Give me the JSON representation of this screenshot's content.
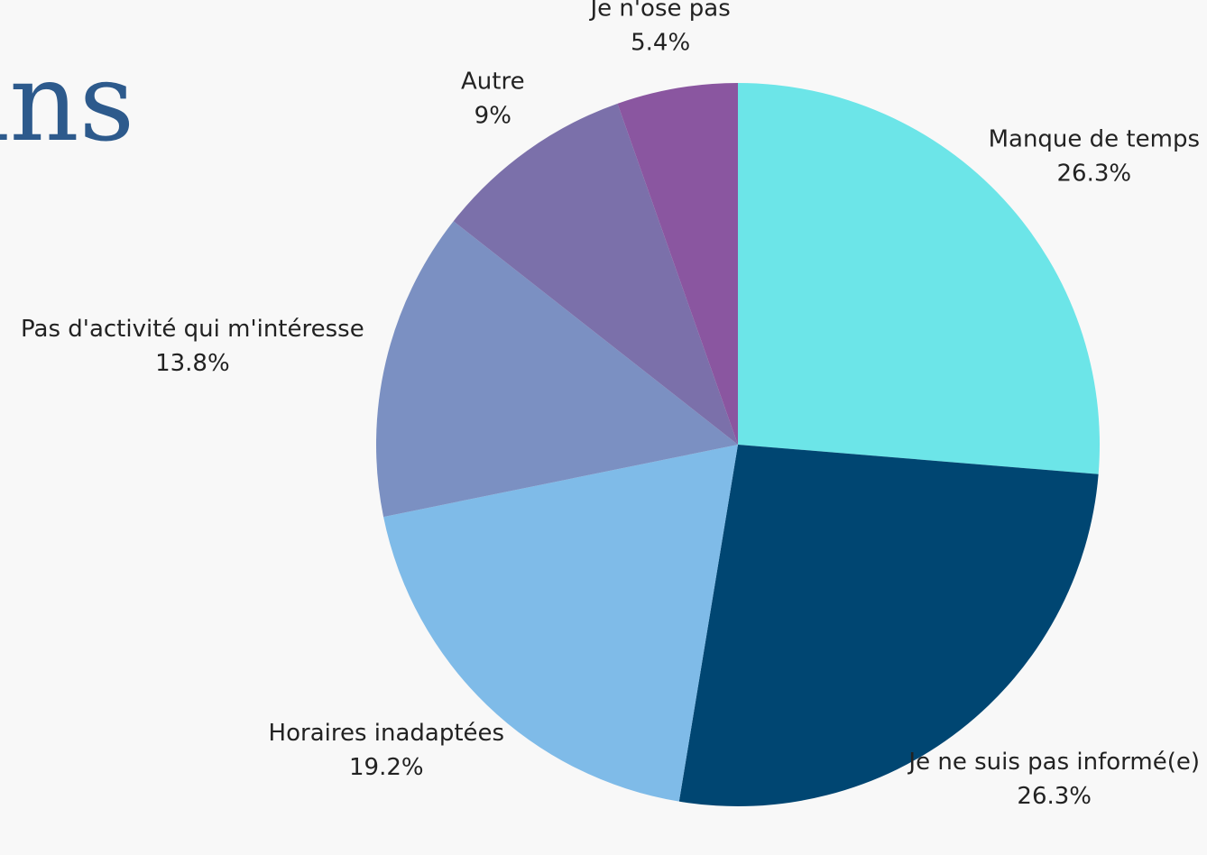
{
  "chart_data": {
    "type": "pie",
    "title": "ins",
    "categories": [
      "Manque de temps",
      "Je ne suis pas informé(e)",
      "Horaires inadaptées",
      "Pas d'activité qui m'intéresse",
      "Autre",
      "Je n'ose pas"
    ],
    "values": [
      26.3,
      26.3,
      19.2,
      13.8,
      9,
      5.4
    ],
    "value_labels": [
      "26.3%",
      "26.3%",
      "19.2%",
      "13.8%",
      "9%",
      "5.4%"
    ],
    "colors": [
      "#6ce5e8",
      "#004672",
      "#7fbbe8",
      "#7b90c2",
      "#7b70aa",
      "#8a56a0"
    ]
  }
}
